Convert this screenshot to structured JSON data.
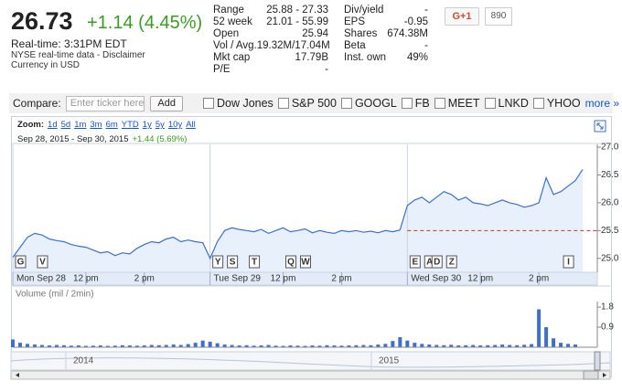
{
  "header": {
    "price": "26.73",
    "change": "+1.14 (4.45%)",
    "realtime": "Real-time:   3:31PM EDT",
    "disclaimer": "NYSE real-time data - Disclaimer",
    "currency": "Currency in USD"
  },
  "stats": {
    "left": [
      {
        "label": "Range",
        "value": "25.88 - 27.33"
      },
      {
        "label": "52 week",
        "value": "21.01 - 55.99"
      },
      {
        "label": "Open",
        "value": "25.94"
      },
      {
        "label": "Vol / Avg.",
        "value": "19.32M/17.04M"
      },
      {
        "label": "Mkt cap",
        "value": "17.79B"
      },
      {
        "label": "P/E",
        "value": "-"
      }
    ],
    "right": [
      {
        "label": "Div/yield",
        "value": "-"
      },
      {
        "label": "EPS",
        "value": "-0.95"
      },
      {
        "label": "Shares",
        "value": "674.38M"
      },
      {
        "label": "Beta",
        "value": "-"
      },
      {
        "label": "Inst. own",
        "value": "49%"
      }
    ]
  },
  "social": {
    "button": "G+1",
    "count": "890"
  },
  "compare": {
    "label": "Compare:",
    "placeholder": "Enter ticker here",
    "button": "Add",
    "options": [
      "Dow Jones",
      "S&P 500",
      "GOOGL",
      "FB",
      "MEET",
      "LNKD",
      "YHOO"
    ],
    "more": "more »"
  },
  "zoom": {
    "label": "Zoom:",
    "options": [
      "1d",
      "5d",
      "1m",
      "3m",
      "6m",
      "YTD",
      "1y",
      "5y",
      "10y",
      "All"
    ]
  },
  "range": {
    "dates": "Sep 28, 2015  -  Sep 30, 2015",
    "change": "+1.44 (5.69%)"
  },
  "chart_data": [
    {
      "type": "line",
      "color": "#3d6fd1",
      "fill": "#e8f0fb",
      "values": [
        25.02,
        25.2,
        25.38,
        25.45,
        25.42,
        25.35,
        25.32,
        25.3,
        25.25,
        25.22,
        25.2,
        25.15,
        25.1,
        25.12,
        25.05,
        25.1,
        25.08,
        25.18,
        25.25,
        25.3,
        25.28,
        25.35,
        25.38,
        25.3,
        25.33,
        25.3,
        25.28,
        25.0,
        25.3,
        25.5,
        25.55,
        25.52,
        25.5,
        25.48,
        25.52,
        25.45,
        25.5,
        25.55,
        25.48,
        25.5,
        25.53,
        25.46,
        25.5,
        25.47,
        25.45,
        25.5,
        25.48,
        25.5,
        25.47,
        25.49,
        25.46,
        25.5,
        25.48,
        25.51,
        25.95,
        26.05,
        26.1,
        26.0,
        26.1,
        26.2,
        26.15,
        26.05,
        26.1,
        26.0,
        25.98,
        25.95,
        26.0,
        26.05,
        26.0,
        25.97,
        25.92,
        25.95,
        26.0,
        26.45,
        26.15,
        26.2,
        26.3,
        26.4,
        26.6
      ],
      "previous_close": 25.5,
      "xlim": [
        0,
        80
      ],
      "xticks": [
        {
          "value": 0,
          "label": "Mon Sep 28"
        },
        {
          "value": 10,
          "label": "12 pm"
        },
        {
          "value": 18,
          "label": "2 pm"
        },
        {
          "value": 27,
          "label": "Tue Sep 29"
        },
        {
          "value": 37,
          "label": "12 pm"
        },
        {
          "value": 45,
          "label": "2 pm"
        },
        {
          "value": 54,
          "label": "Wed Sep 30"
        },
        {
          "value": 64,
          "label": "12 pm"
        },
        {
          "value": 72,
          "label": "2 pm"
        }
      ],
      "ylim": [
        24.75,
        27.05
      ],
      "yticks": [
        {
          "value": 25,
          "label": "25.0"
        },
        {
          "value": 25.5,
          "label": "25.5"
        },
        {
          "value": 26,
          "label": "26.0"
        },
        {
          "value": 26.5,
          "label": "26.5"
        },
        {
          "value": 27,
          "label": "27.0"
        }
      ],
      "flags": [
        {
          "label": "G",
          "x": 1
        },
        {
          "label": "V",
          "x": 4
        },
        {
          "label": "Y",
          "x": 28
        },
        {
          "label": "S",
          "x": 30
        },
        {
          "label": "T",
          "x": 33
        },
        {
          "label": "Q",
          "x": 38
        },
        {
          "label": "W",
          "x": 40
        },
        {
          "label": "E",
          "x": 55
        },
        {
          "label": "A",
          "x": 57
        },
        {
          "label": "D",
          "x": 58
        },
        {
          "label": "Z",
          "x": 60
        },
        {
          "label": "I",
          "x": 76
        }
      ]
    },
    {
      "type": "bar",
      "title": "Volume (mil / 2min)",
      "color": "#3d6fd1",
      "values": [
        0.35,
        0.2,
        0.15,
        0.12,
        0.1,
        0.08,
        0.1,
        0.09,
        0.07,
        0.08,
        0.06,
        0.07,
        0.08,
        0.06,
        0.07,
        0.09,
        0.08,
        0.07,
        0.08,
        0.1,
        0.09,
        0.1,
        0.12,
        0.1,
        0.14,
        0.2,
        0.3,
        0.25,
        0.18,
        0.12,
        0.1,
        0.08,
        0.09,
        0.07,
        0.08,
        0.1,
        0.07,
        0.06,
        0.08,
        0.07,
        0.06,
        0.08,
        0.07,
        0.09,
        0.08,
        0.07,
        0.08,
        0.09,
        0.1,
        0.09,
        0.12,
        0.15,
        0.28,
        0.45,
        0.3,
        0.2,
        0.15,
        0.12,
        0.1,
        0.09,
        0.11,
        0.08,
        0.09,
        0.1,
        0.08,
        0.09,
        0.1,
        0.12,
        0.1,
        0.09,
        0.11,
        0.14,
        1.7,
        0.9,
        0.4,
        0.2,
        0.15,
        0.12
      ],
      "xlim": [
        0,
        80
      ],
      "ylim": [
        0,
        2.05
      ],
      "yticks": [
        0.9,
        1.8
      ]
    }
  ],
  "navigator": {
    "labels": [
      "2014",
      "2015"
    ]
  }
}
